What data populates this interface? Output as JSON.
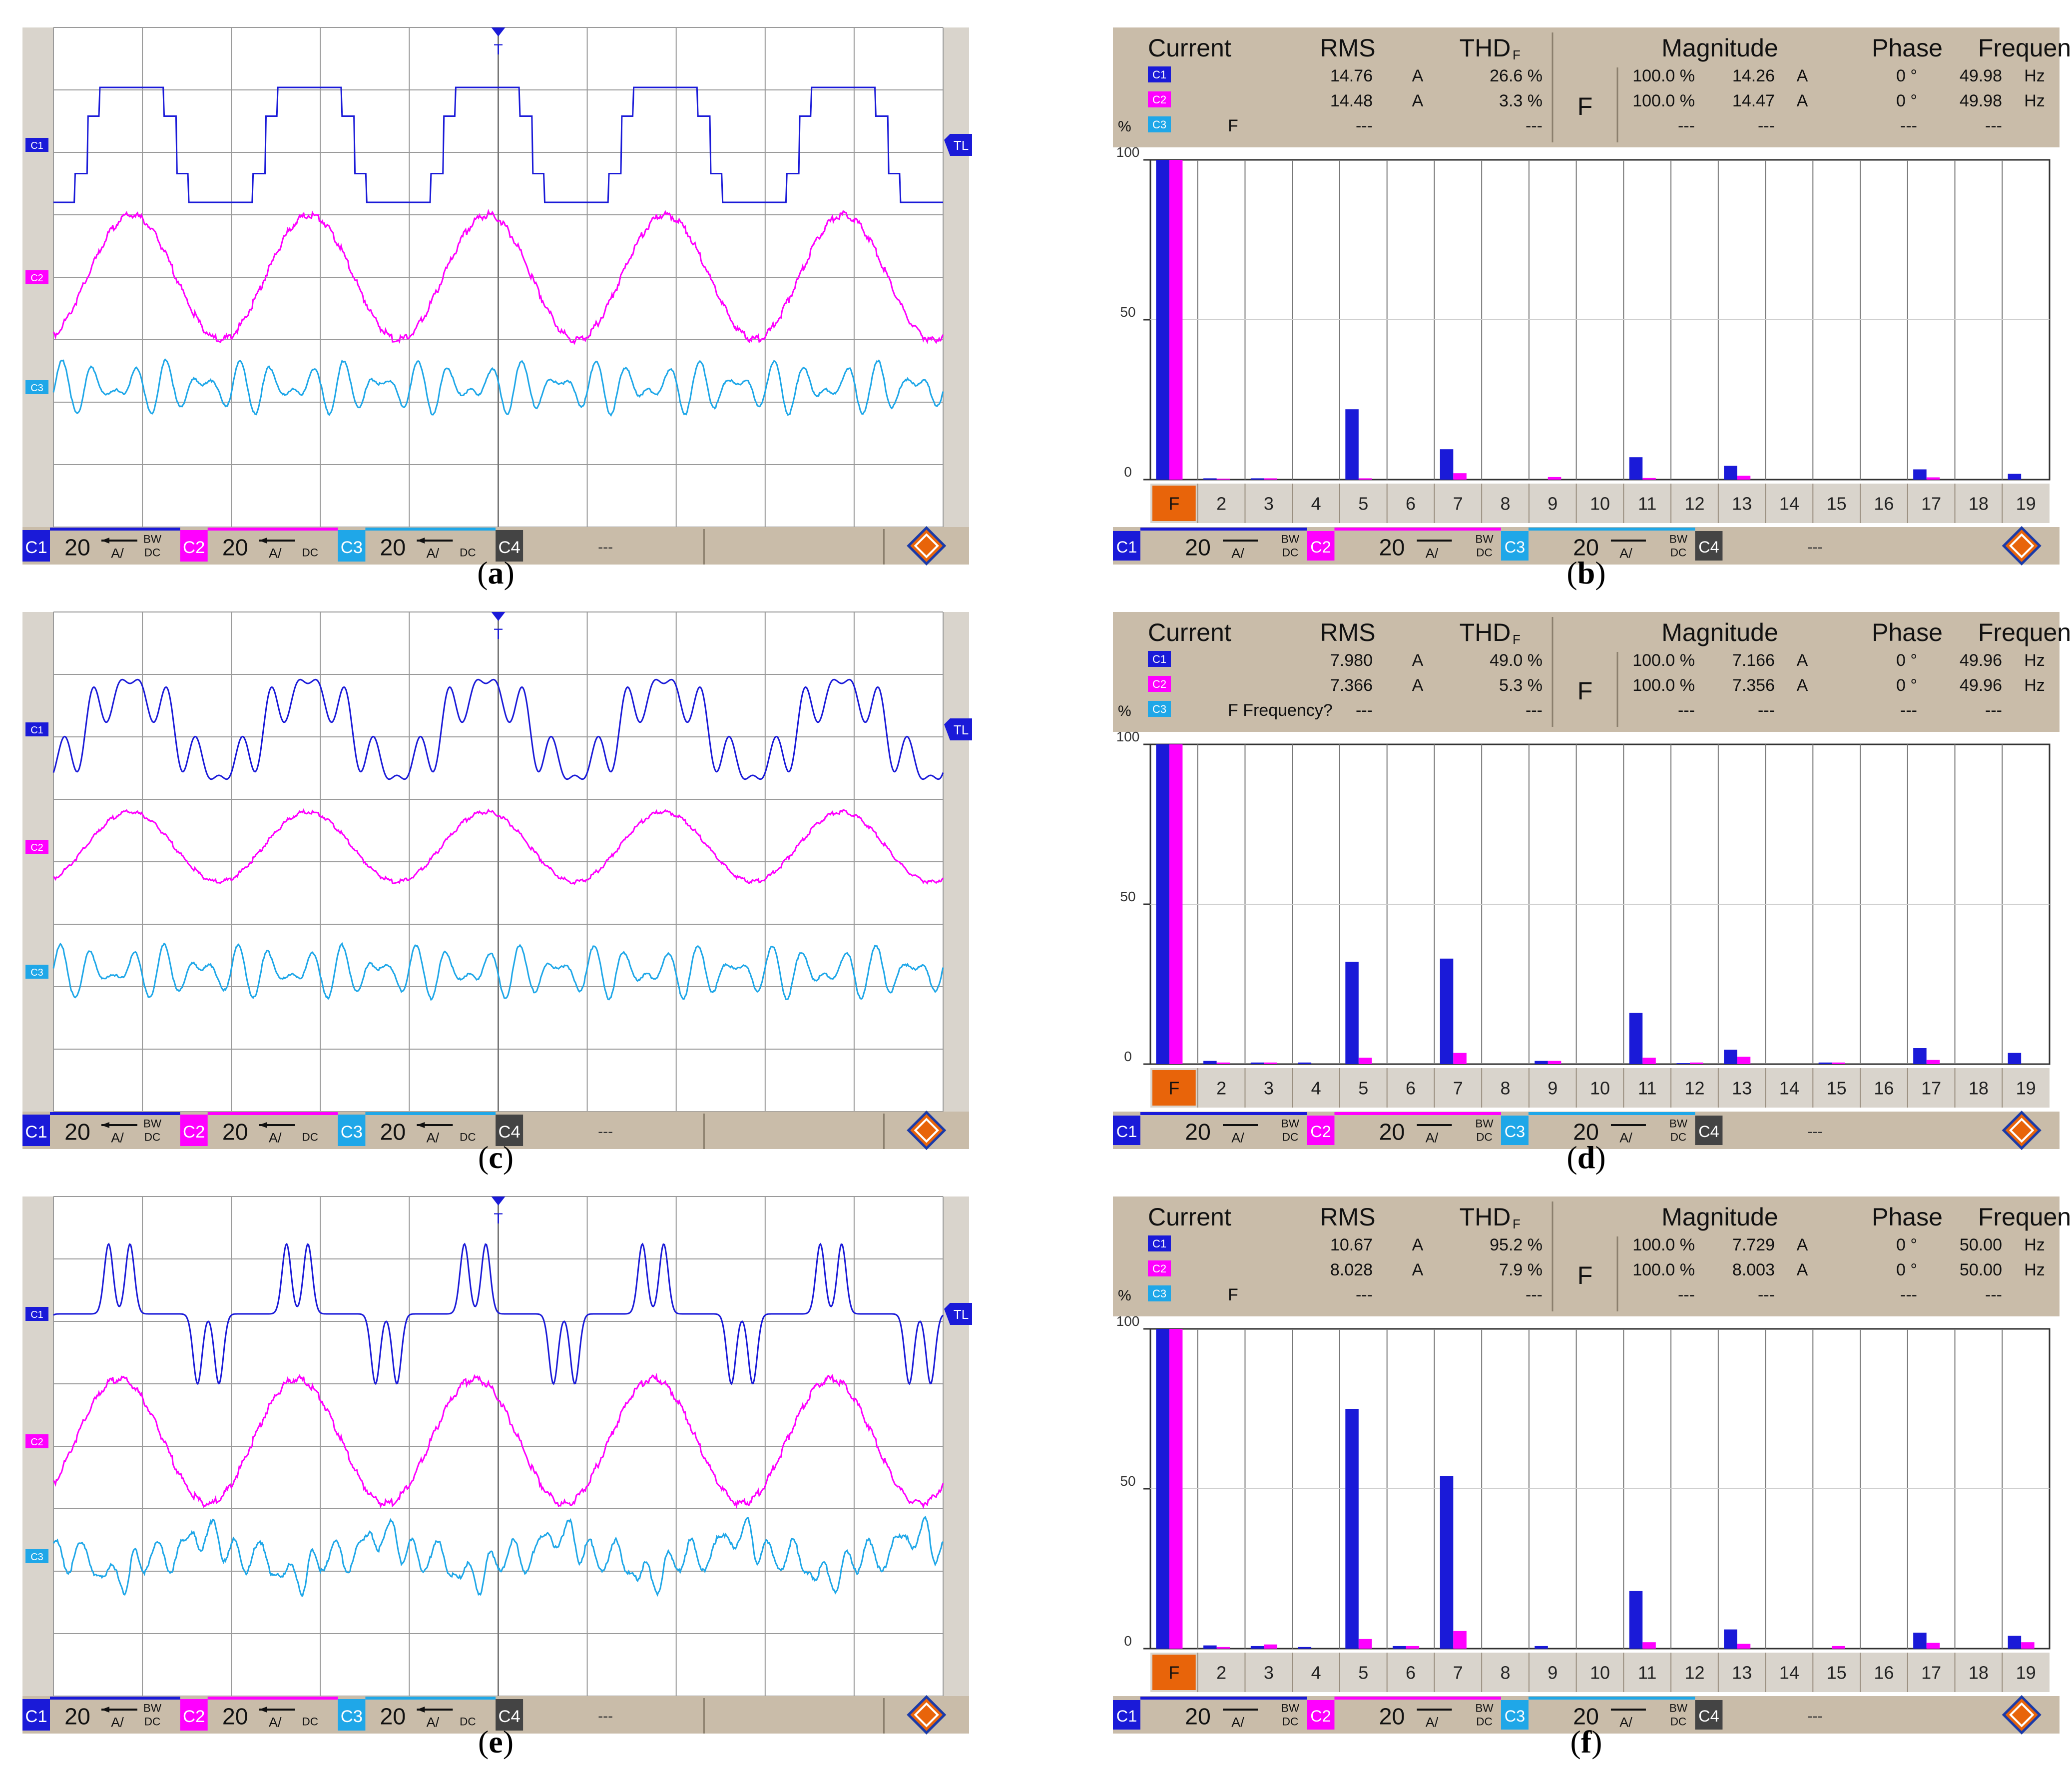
{
  "panel_labels": [
    "a",
    "b",
    "c",
    "d",
    "e",
    "f"
  ],
  "scope_footer": {
    "channels": [
      {
        "id": "C1",
        "scale": "20",
        "unit": "A/",
        "coupling": "BW DC",
        "color": "#1a1ad8"
      },
      {
        "id": "C2",
        "scale": "20",
        "unit": "A/",
        "coupling": "DC",
        "color": "#ff00ff"
      },
      {
        "id": "C3",
        "scale": "20",
        "unit": "A/",
        "coupling": "DC",
        "color": "#1fa7e8"
      },
      {
        "id": "C4",
        "value": "---",
        "color": "#444444"
      }
    ],
    "trigger_marker": "T",
    "trigger_level": "TL"
  },
  "harmonic_footer": {
    "channels": [
      {
        "id": "C1",
        "scale": "20",
        "unit": "A/",
        "coupling": "BW DC"
      },
      {
        "id": "C2",
        "scale": "20",
        "unit": "A/",
        "coupling": "BW DC"
      },
      {
        "id": "C3",
        "scale": "20",
        "unit": "A/",
        "coupling": "BW DC"
      },
      {
        "id": "C4",
        "value": "---"
      }
    ]
  },
  "harmonic_headers": {
    "current": "Current",
    "rms": "RMS",
    "thd": "THD",
    "thd_sub": "F",
    "magnitude": "Magnitude",
    "phase": "Phase",
    "frequency": "Frequency",
    "percent": "%",
    "mode": "F"
  },
  "harmonic_axis": {
    "y_ticks": [
      "100",
      "50",
      "0"
    ],
    "x_labels": [
      "F",
      "2",
      "3",
      "4",
      "5",
      "6",
      "7",
      "8",
      "9",
      "10",
      "11",
      "12",
      "13",
      "14",
      "15",
      "16",
      "17",
      "18",
      "19"
    ]
  },
  "colors": {
    "c1": "#1a1ad8",
    "c2": "#ff00ff",
    "c3": "#1fa7e8",
    "c4": "#444444",
    "panel_bg": "#c9bca9",
    "accent": "#e8640a"
  },
  "chart_data": [
    {
      "panel": "a",
      "type": "line",
      "title": "",
      "waveform": "stepped",
      "series": [
        {
          "name": "C1",
          "channel": "C1"
        },
        {
          "name": "C2",
          "channel": "C2"
        },
        {
          "name": "C3",
          "channel": "C3"
        }
      ],
      "cycles": 5,
      "grid": true
    },
    {
      "panel": "b",
      "type": "bar",
      "title": "",
      "table": {
        "c1": {
          "rms": "14.76",
          "rms_unit": "A",
          "thd": "26.6 %",
          "mag_pct": "100.0 %",
          "mag": "14.26",
          "mag_unit": "A",
          "phase": "0 °",
          "freq": "49.98",
          "freq_unit": "Hz"
        },
        "c2": {
          "rms": "14.48",
          "rms_unit": "A",
          "thd": "3.3 %",
          "mag_pct": "100.0 %",
          "mag": "14.47",
          "mag_unit": "A",
          "phase": "0 °",
          "freq": "49.98",
          "freq_unit": "Hz"
        },
        "c3": {
          "rms": "---",
          "thd": "---",
          "mag_pct": "---",
          "mag": "---",
          "phase": "---",
          "freq": "---",
          "note": "F"
        }
      },
      "categories": [
        "F",
        "2",
        "3",
        "4",
        "5",
        "6",
        "7",
        "8",
        "9",
        "10",
        "11",
        "12",
        "13",
        "14",
        "15",
        "16",
        "17",
        "18",
        "19"
      ],
      "ylim": [
        0,
        100
      ],
      "series": [
        {
          "name": "C1",
          "values": [
            100,
            0.4,
            0.4,
            0,
            22,
            0,
            9.5,
            0,
            0,
            0,
            7,
            0,
            4.3,
            0,
            0,
            0,
            3.2,
            0,
            1.8
          ]
        },
        {
          "name": "C2",
          "values": [
            100,
            0.3,
            0.4,
            0,
            0.4,
            0,
            2,
            0,
            0.8,
            0,
            0.5,
            0,
            1.2,
            0,
            0,
            0,
            0.7,
            0,
            0
          ]
        }
      ]
    },
    {
      "panel": "c",
      "type": "line",
      "title": "",
      "waveform": "double-hump",
      "series": [
        {
          "name": "C1",
          "channel": "C1"
        },
        {
          "name": "C2",
          "channel": "C2"
        },
        {
          "name": "C3",
          "channel": "C3"
        }
      ],
      "cycles": 5,
      "grid": true
    },
    {
      "panel": "d",
      "type": "bar",
      "title": "",
      "table": {
        "c1": {
          "rms": "7.980",
          "rms_unit": "A",
          "thd": "49.0 %",
          "mag_pct": "100.0 %",
          "mag": "7.166",
          "mag_unit": "A",
          "phase": "0 °",
          "freq": "49.96",
          "freq_unit": "Hz"
        },
        "c2": {
          "rms": "7.366",
          "rms_unit": "A",
          "thd": "5.3 %",
          "mag_pct": "100.0 %",
          "mag": "7.356",
          "mag_unit": "A",
          "phase": "0 °",
          "freq": "49.96",
          "freq_unit": "Hz"
        },
        "c3": {
          "rms": "---",
          "thd": "---",
          "mag_pct": "---",
          "mag": "---",
          "phase": "---",
          "freq": "---",
          "note": "F  Frequency?"
        }
      },
      "categories": [
        "F",
        "2",
        "3",
        "4",
        "5",
        "6",
        "7",
        "8",
        "9",
        "10",
        "11",
        "12",
        "13",
        "14",
        "15",
        "16",
        "17",
        "18",
        "19"
      ],
      "ylim": [
        0,
        100
      ],
      "series": [
        {
          "name": "C1",
          "values": [
            100,
            1,
            0.5,
            0.5,
            32,
            0,
            33,
            0,
            1,
            0,
            16,
            0.3,
            4.5,
            0,
            0.5,
            0,
            5,
            0,
            3.5
          ]
        },
        {
          "name": "C2",
          "values": [
            100,
            0.5,
            0.5,
            0,
            2,
            0,
            3.5,
            0,
            1,
            0,
            2,
            0.5,
            2.3,
            0,
            0.5,
            0,
            1.3,
            0,
            0
          ]
        }
      ]
    },
    {
      "panel": "e",
      "type": "line",
      "title": "",
      "waveform": "pulse",
      "series": [
        {
          "name": "C1",
          "channel": "C1"
        },
        {
          "name": "C2",
          "channel": "C2"
        },
        {
          "name": "C3",
          "channel": "C3"
        }
      ],
      "cycles": 5,
      "grid": true
    },
    {
      "panel": "f",
      "type": "bar",
      "title": "",
      "table": {
        "c1": {
          "rms": "10.67",
          "rms_unit": "A",
          "thd": "95.2 %",
          "mag_pct": "100.0 %",
          "mag": "7.729",
          "mag_unit": "A",
          "phase": "0 °",
          "freq": "50.00",
          "freq_unit": "Hz"
        },
        "c2": {
          "rms": "8.028",
          "rms_unit": "A",
          "thd": "7.9 %",
          "mag_pct": "100.0 %",
          "mag": "8.003",
          "mag_unit": "A",
          "phase": "0 °",
          "freq": "50.00",
          "freq_unit": "Hz"
        },
        "c3": {
          "rms": "---",
          "thd": "---",
          "mag_pct": "---",
          "mag": "---",
          "phase": "---",
          "freq": "---",
          "note": "F"
        }
      },
      "categories": [
        "F",
        "2",
        "3",
        "4",
        "5",
        "6",
        "7",
        "8",
        "9",
        "10",
        "11",
        "12",
        "13",
        "14",
        "15",
        "16",
        "17",
        "18",
        "19"
      ],
      "ylim": [
        0,
        100
      ],
      "series": [
        {
          "name": "C1",
          "values": [
            100,
            1,
            0.8,
            0.5,
            75,
            0.8,
            54,
            0,
            0.8,
            0,
            18,
            0,
            6,
            0,
            0,
            0,
            5,
            0,
            4
          ]
        },
        {
          "name": "C2",
          "values": [
            100,
            0.5,
            1.3,
            0,
            3,
            0.8,
            5.5,
            0,
            0,
            0,
            2,
            0,
            1.5,
            0,
            0.8,
            0,
            1.8,
            0,
            2
          ]
        }
      ]
    }
  ]
}
